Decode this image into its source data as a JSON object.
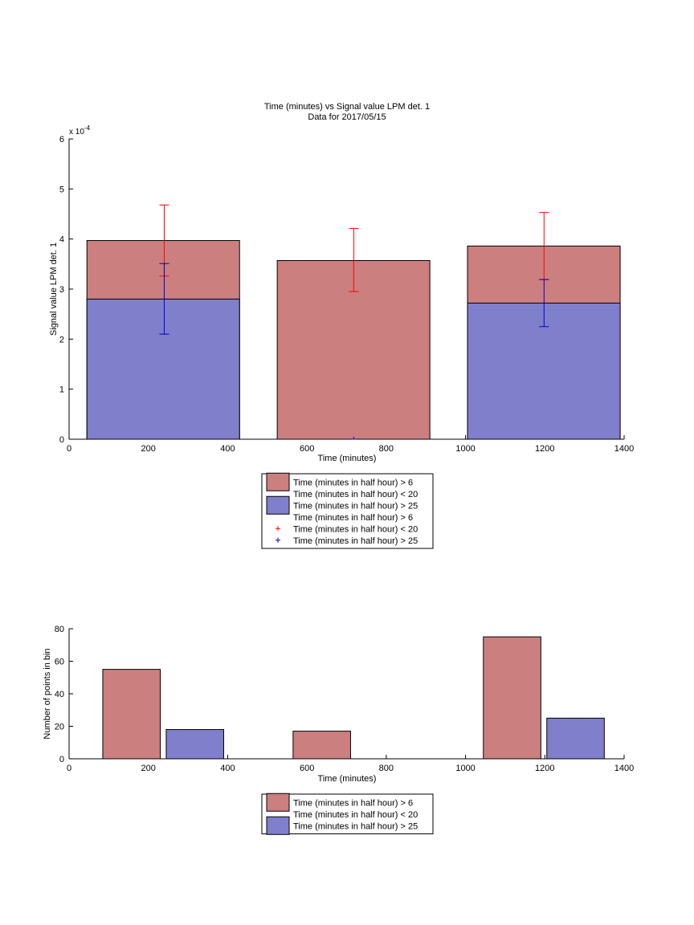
{
  "colors": {
    "red_bar": "#cc7f7f",
    "blue_bar": "#7f7fcc",
    "red_err": "#ff0000",
    "blue_err": "#0000cc",
    "axis": "#000000"
  },
  "chart_data": [
    {
      "type": "bar",
      "title": "Time (minutes) vs Signal value LPM det. 1",
      "subtitle": "Data for 2017/05/15",
      "xlabel": "Time (minutes)",
      "ylabel": "Signal value LPM det. 1",
      "y_multiplier_label": "x 10",
      "y_multiplier_exp": "-4",
      "xlim": [
        0,
        1400
      ],
      "ylim": [
        0,
        6
      ],
      "x_ticks": [
        0,
        200,
        400,
        600,
        800,
        1000,
        1200,
        1400
      ],
      "y_ticks": [
        0,
        1,
        2,
        3,
        4,
        5,
        6
      ],
      "layout": "overlaid",
      "bins": [
        {
          "x0": 45,
          "x1": 430
        },
        {
          "x0": 525,
          "x1": 910
        },
        {
          "x0": 1005,
          "x1": 1390
        }
      ],
      "series": [
        {
          "color_key": "red_bar",
          "values": [
            3.97,
            3.57,
            3.86
          ]
        },
        {
          "color_key": "blue_bar",
          "values": [
            2.8,
            0,
            2.72
          ]
        }
      ],
      "error_bars": [
        {
          "color_key": "red_err",
          "points": [
            {
              "x": 240,
              "y": 3.97,
              "low": 3.26,
              "high": 4.68
            },
            {
              "x": 718,
              "y": 3.57,
              "low": 2.95,
              "high": 4.21
            },
            {
              "x": 1198,
              "y": 3.86,
              "low": 3.19,
              "high": 4.53
            }
          ]
        },
        {
          "color_key": "blue_err",
          "points": [
            {
              "x": 240,
              "y": 2.8,
              "low": 2.1,
              "high": 3.51
            },
            {
              "x": 718,
              "y": 0,
              "low": 0,
              "high": 0
            },
            {
              "x": 1198,
              "y": 2.72,
              "low": 2.25,
              "high": 3.19
            }
          ]
        }
      ],
      "legend": {
        "placement": "below",
        "entries": [
          {
            "kind": "patch",
            "color_key": "red_bar",
            "text": "Time (minutes in half hour) > 6"
          },
          {
            "kind": "none",
            "text": "Time (minutes in half hour) < 20"
          },
          {
            "kind": "patch",
            "color_key": "blue_bar",
            "text": "Time (minutes in half hour) > 25"
          },
          {
            "kind": "none",
            "text": "Time (minutes in half hour) > 6"
          },
          {
            "kind": "marker",
            "color_key": "red_err",
            "text": "Time (minutes in half hour) < 20"
          },
          {
            "kind": "marker",
            "color_key": "blue_err",
            "text": "Time (minutes in half hour) > 25"
          }
        ]
      }
    },
    {
      "type": "bar",
      "title": "",
      "xlabel": "Time (minutes)",
      "ylabel": "Number of points in bin",
      "xlim": [
        0,
        1400
      ],
      "ylim": [
        0,
        80
      ],
      "x_ticks": [
        0,
        200,
        400,
        600,
        800,
        1000,
        1200,
        1400
      ],
      "y_ticks": [
        0,
        20,
        40,
        60,
        80
      ],
      "layout": "side-by-side",
      "bars": [
        {
          "x0": 85,
          "x1": 230,
          "value": 55,
          "color_key": "red_bar"
        },
        {
          "x0": 245,
          "x1": 390,
          "value": 18,
          "color_key": "blue_bar"
        },
        {
          "x0": 565,
          "x1": 710,
          "value": 17,
          "color_key": "red_bar"
        },
        {
          "x0": 1045,
          "x1": 1190,
          "value": 75,
          "color_key": "red_bar"
        },
        {
          "x0": 1205,
          "x1": 1350,
          "value": 25,
          "color_key": "blue_bar"
        }
      ],
      "legend": {
        "placement": "below",
        "entries": [
          {
            "kind": "patch",
            "color_key": "red_bar",
            "text": "Time (minutes in half hour) > 6"
          },
          {
            "kind": "none",
            "text": "Time (minutes in half hour) < 20"
          },
          {
            "kind": "patch",
            "color_key": "blue_bar",
            "text": "Time (minutes in half hour) > 25"
          }
        ]
      }
    }
  ]
}
